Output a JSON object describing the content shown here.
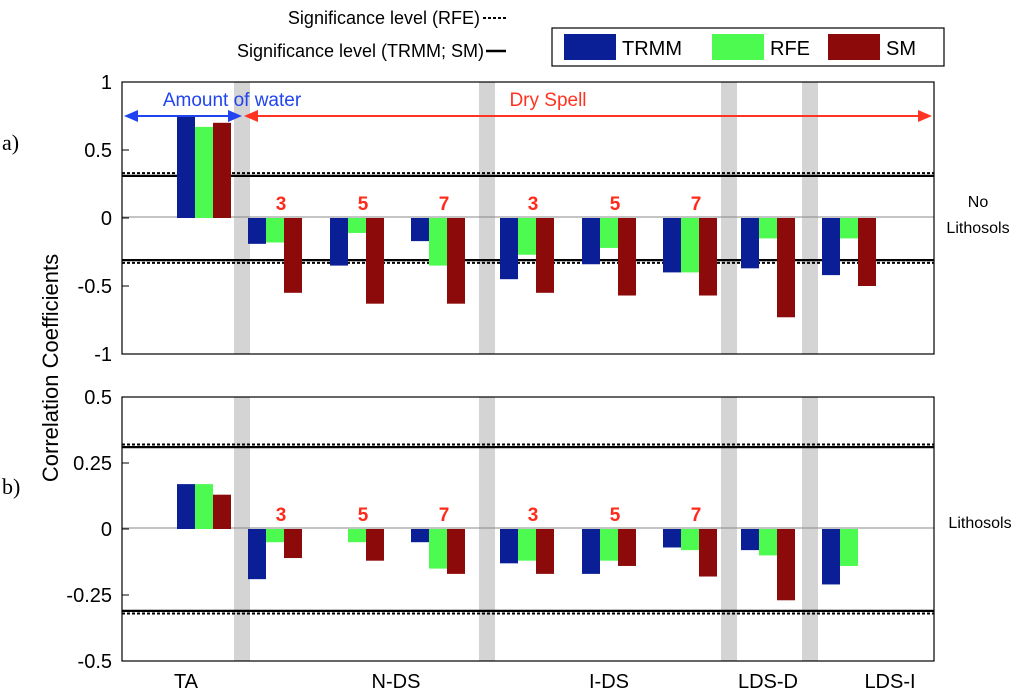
{
  "chart_data": [
    {
      "type": "bar",
      "panel_label": "a)",
      "side_label": [
        "No",
        "Lithosols"
      ],
      "ylim": [
        -1,
        1
      ],
      "yticks": [
        "-1",
        "-0.5",
        "0",
        "0.5",
        "1"
      ],
      "categories": [
        "TA",
        "N-DS 3",
        "N-DS 5",
        "N-DS 7",
        "I-DS 3",
        "I-DS 5",
        "I-DS 7",
        "LDS-D",
        "LDS-I"
      ],
      "series": [
        {
          "name": "TRMM",
          "values": [
            0.75,
            -0.19,
            -0.35,
            -0.17,
            -0.45,
            -0.34,
            -0.4,
            -0.37,
            -0.42
          ]
        },
        {
          "name": "RFE",
          "values": [
            0.67,
            -0.18,
            -0.11,
            -0.35,
            -0.27,
            -0.22,
            -0.4,
            -0.15,
            -0.15
          ]
        },
        {
          "name": "SM",
          "values": [
            0.7,
            -0.55,
            -0.63,
            -0.63,
            -0.55,
            -0.57,
            -0.57,
            -0.73,
            -0.5
          ]
        }
      ],
      "bar_labels": [
        "",
        "3",
        "5",
        "7",
        "3",
        "5",
        "7",
        "",
        ""
      ],
      "significance_rfe": 0.33,
      "significance_trmm_sm": 0.31,
      "annotations": [
        "Amount of water",
        "Dry Spell"
      ]
    },
    {
      "type": "bar",
      "panel_label": "b)",
      "side_label": [
        "Lithosols"
      ],
      "ylim": [
        -0.5,
        0.5
      ],
      "yticks": [
        "-0.5",
        "-0.25",
        "0",
        "0.25",
        "0.5"
      ],
      "categories": [
        "TA",
        "N-DS 3",
        "N-DS 5",
        "N-DS 7",
        "I-DS 3",
        "I-DS 5",
        "I-DS 7",
        "LDS-D",
        "LDS-I"
      ],
      "series": [
        {
          "name": "TRMM",
          "values": [
            0.17,
            -0.19,
            0.0,
            -0.05,
            -0.13,
            -0.17,
            -0.07,
            -0.08,
            -0.21
          ]
        },
        {
          "name": "RFE",
          "values": [
            0.17,
            -0.05,
            -0.05,
            -0.15,
            -0.12,
            -0.12,
            -0.08,
            -0.1,
            -0.14
          ]
        },
        {
          "name": "SM",
          "values": [
            0.13,
            -0.11,
            -0.12,
            -0.17,
            -0.17,
            -0.14,
            -0.18,
            -0.27,
            0.0
          ]
        }
      ],
      "bar_labels": [
        "",
        "3",
        "5",
        "7",
        "3",
        "5",
        "7",
        "",
        ""
      ],
      "significance_rfe": 0.32,
      "significance_trmm_sm": 0.31
    }
  ],
  "ylabel": "Correlation Coefficients",
  "xgroups": [
    "TA",
    "N-DS",
    "I-DS",
    "LDS-D",
    "LDS-I"
  ],
  "legend": {
    "entries": [
      "TRMM",
      "RFE",
      "SM"
    ],
    "placement": "top-right"
  },
  "significance_legend": {
    "rfe": "Significance level (RFE)",
    "trmm_sm": "Significance level (TRMM; SM)"
  },
  "colors": {
    "TRMM": "#0a1e96",
    "RFE": "#4dfa50",
    "SM": "#8c0a0a",
    "amount_arrow": "#2244ee",
    "dry_arrow": "#ff3322",
    "bar_label": "#ff2a1a",
    "separator": "#d4d4d4"
  }
}
